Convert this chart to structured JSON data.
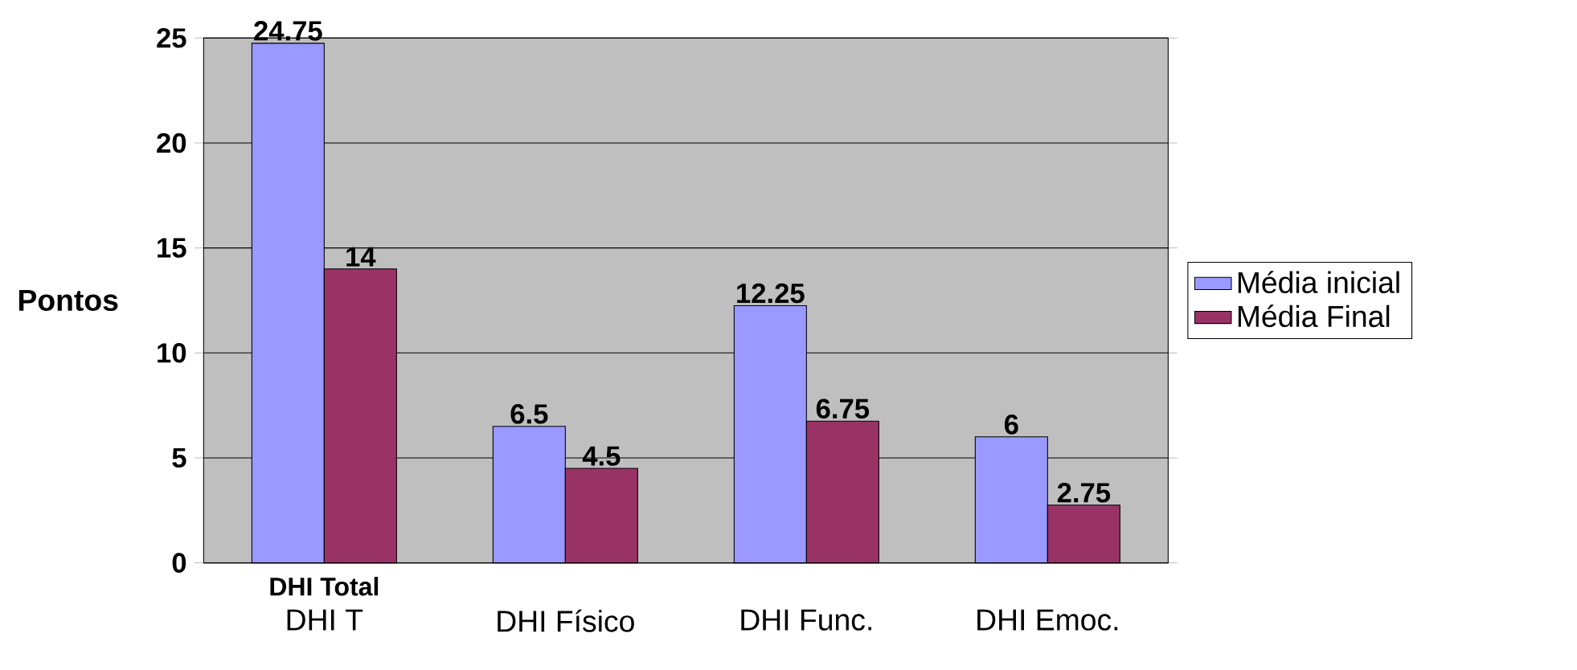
{
  "chart_data": {
    "type": "bar",
    "ylabel": "Pontos",
    "categories": [
      "DHI T",
      "DHI Físico",
      "DHI Func.",
      "DHI Emoc."
    ],
    "series": [
      {
        "name": "Média inicial",
        "color": "#9999ff",
        "values": [
          24.75,
          6.5,
          12.25,
          6
        ],
        "value_labels": [
          "24.75",
          "6.5",
          "12.25",
          "6"
        ]
      },
      {
        "name": "Média Final",
        "color": "#993366",
        "values": [
          14,
          4.5,
          6.75,
          2.75
        ],
        "value_labels": [
          "14",
          "4.5",
          "6.75",
          "2.75"
        ]
      }
    ],
    "ylim": [
      0,
      25
    ],
    "yticks": [
      0,
      5,
      10,
      15,
      20,
      25
    ],
    "grid": "y",
    "legend": "right",
    "annotations": [
      "**DHI Total**"
    ]
  }
}
